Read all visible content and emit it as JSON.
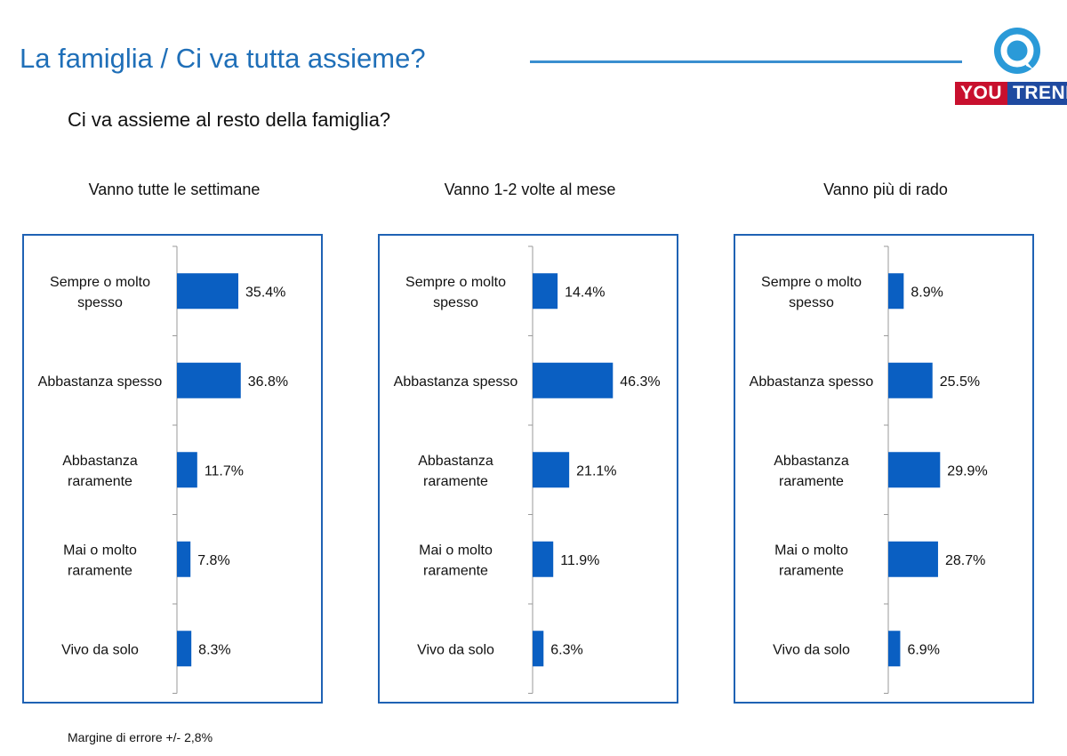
{
  "header": {
    "title": "La famiglia / Ci va tutta assieme?",
    "question": "Ci va assieme al resto della famiglia?",
    "logo_you": "YOU",
    "logo_trend": "TREND"
  },
  "colors": {
    "bar": "#0a5fc2",
    "title": "#1f6fb8",
    "panel_border": "#1f62b4"
  },
  "chart_data": [
    {
      "type": "bar",
      "orientation": "horizontal",
      "title": "Vanno tutte le settimane",
      "categories": [
        [
          "Sempre o molto",
          "spesso"
        ],
        [
          "Abbastanza spesso"
        ],
        [
          "Abbastanza",
          "raramente"
        ],
        [
          "Mai o molto",
          "raramente"
        ],
        [
          "Vivo da solo"
        ]
      ],
      "values": [
        35.4,
        36.8,
        11.7,
        7.8,
        8.3
      ],
      "labels": [
        "35.4%",
        "36.8%",
        "11.7%",
        "7.8%",
        "8.3%"
      ]
    },
    {
      "type": "bar",
      "orientation": "horizontal",
      "title": "Vanno 1-2 volte al mese",
      "categories": [
        [
          "Sempre o molto",
          "spesso"
        ],
        [
          "Abbastanza spesso"
        ],
        [
          "Abbastanza",
          "raramente"
        ],
        [
          "Mai o molto",
          "raramente"
        ],
        [
          "Vivo da solo"
        ]
      ],
      "values": [
        14.4,
        46.3,
        21.1,
        11.9,
        6.3
      ],
      "labels": [
        "14.4%",
        "46.3%",
        "21.1%",
        "11.9%",
        "6.3%"
      ]
    },
    {
      "type": "bar",
      "orientation": "horizontal",
      "title": "Vanno più di rado",
      "categories": [
        [
          "Sempre o molto",
          "spesso"
        ],
        [
          "Abbastanza spesso"
        ],
        [
          "Abbastanza",
          "raramente"
        ],
        [
          "Mai o molto",
          "raramente"
        ],
        [
          "Vivo da solo"
        ]
      ],
      "values": [
        8.9,
        25.5,
        29.9,
        28.7,
        6.9
      ],
      "labels": [
        "8.9%",
        "25.5%",
        "29.9%",
        "28.7%",
        "6.9%"
      ]
    }
  ],
  "footnote": "Margine di errore +/- 2,8%"
}
